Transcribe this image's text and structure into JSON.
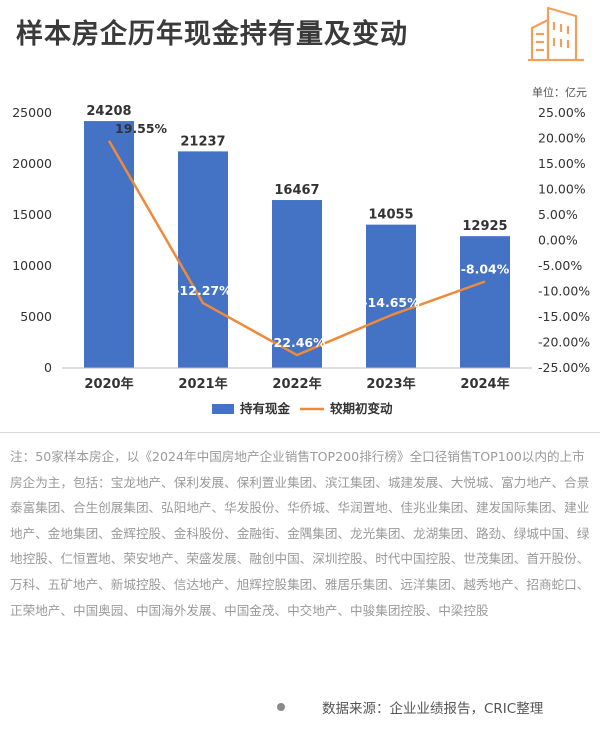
{
  "header": {
    "title": "样本房企历年现金持有量及变动",
    "unit": "单位：亿元"
  },
  "chart_data": {
    "type": "bar",
    "categories": [
      "2020年",
      "2021年",
      "2022年",
      "2023年",
      "2024年"
    ],
    "series": [
      {
        "name": "持有现金",
        "kind": "bar",
        "axis": "left",
        "color": "#4472c4",
        "values": [
          24208,
          21237,
          16467,
          14055,
          12925
        ],
        "labels": [
          "24208",
          "21237",
          "16467",
          "14055",
          "12925"
        ]
      },
      {
        "name": "较期初变动",
        "kind": "line",
        "axis": "right",
        "color": "#ed8a3b",
        "values": [
          19.55,
          -12.27,
          -22.46,
          -14.65,
          -8.04
        ],
        "labels": [
          "19.55%",
          "-12.27%",
          "-22.46%",
          "-14.65%",
          "-8.04%"
        ]
      }
    ],
    "ylim_left": [
      0,
      25000
    ],
    "yticks_left": [
      "0",
      "5000",
      "10000",
      "15000",
      "20000",
      "25000"
    ],
    "ylim_right": [
      -25,
      25
    ],
    "yticks_right": [
      "-25.00%",
      "-20.00%",
      "-15.00%",
      "-10.00%",
      "-5.00%",
      "0.00%",
      "5.00%",
      "10.00%",
      "15.00%",
      "20.00%",
      "25.00%"
    ],
    "legend_position": "bottom",
    "grid": false
  },
  "footer": {
    "note": "注：50家样本房企，以《2024年中国房地产企业销售TOP200排行榜》全口径销售TOP100以内的上市房企为主，包括：宝龙地产、保利发展、保利置业集团、滨江集团、城建发展、大悦城、富力地产、合景泰富集团、合生创展集团、弘阳地产、华发股份、华侨城、华润置地、佳兆业集团、建发国际集团、建业地产、金地集团、金辉控股、金科股份、金融街、金隅集团、龙光集团、龙湖集团、路劲、绿城中国、绿地控股、仁恒置地、荣安地产、荣盛发展、融创中国、深圳控股、时代中国控股、世茂集团、首开股份、万科、五矿地产、新城控股、信达地产、旭辉控股集团、雅居乐集团、远洋集团、越秀地产、招商蛇口、正荣地产、中国奥园、中国海外发展、中国金茂、中交地产、中骏集团控股、中梁控股",
    "source": "数据来源：企业业绩报告，CRIC整理"
  }
}
